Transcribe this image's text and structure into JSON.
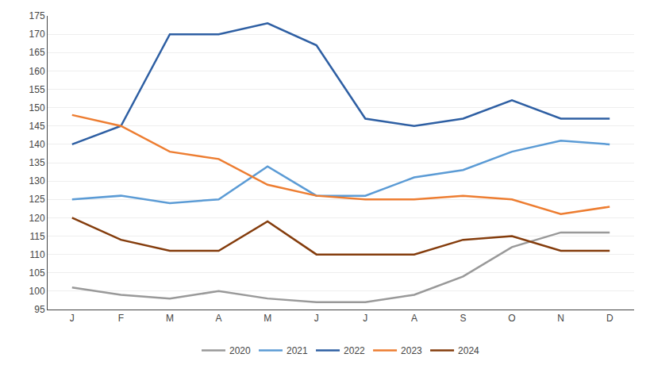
{
  "chart_data": {
    "type": "line",
    "categories": [
      "J",
      "F",
      "M",
      "A",
      "M",
      "J",
      "J",
      "A",
      "S",
      "O",
      "N",
      "D"
    ],
    "series": [
      {
        "name": "2020",
        "color": "#999999",
        "values": [
          101,
          99,
          98,
          100,
          98,
          97,
          97,
          99,
          104,
          112,
          116,
          116
        ]
      },
      {
        "name": "2021",
        "color": "#5B9BD5",
        "values": [
          125,
          126,
          124,
          125,
          134,
          126,
          126,
          131,
          133,
          138,
          141,
          140
        ]
      },
      {
        "name": "2022",
        "color": "#2E5FA3",
        "values": [
          140,
          145,
          170,
          170,
          173,
          167,
          147,
          145,
          147,
          152,
          147,
          147
        ]
      },
      {
        "name": "2023",
        "color": "#ED7D31",
        "values": [
          148,
          145,
          138,
          136,
          129,
          126,
          125,
          125,
          126,
          125,
          121,
          123
        ]
      },
      {
        "name": "2024",
        "color": "#843C0C",
        "values": [
          120,
          114,
          111,
          111,
          119,
          110,
          110,
          110,
          114,
          115,
          111,
          111
        ]
      }
    ],
    "ylim": [
      95,
      175
    ],
    "yticks": [
      95,
      100,
      105,
      110,
      115,
      120,
      125,
      130,
      135,
      140,
      145,
      150,
      155,
      160,
      165,
      170,
      175
    ],
    "grid": true,
    "legend": "bottom"
  }
}
